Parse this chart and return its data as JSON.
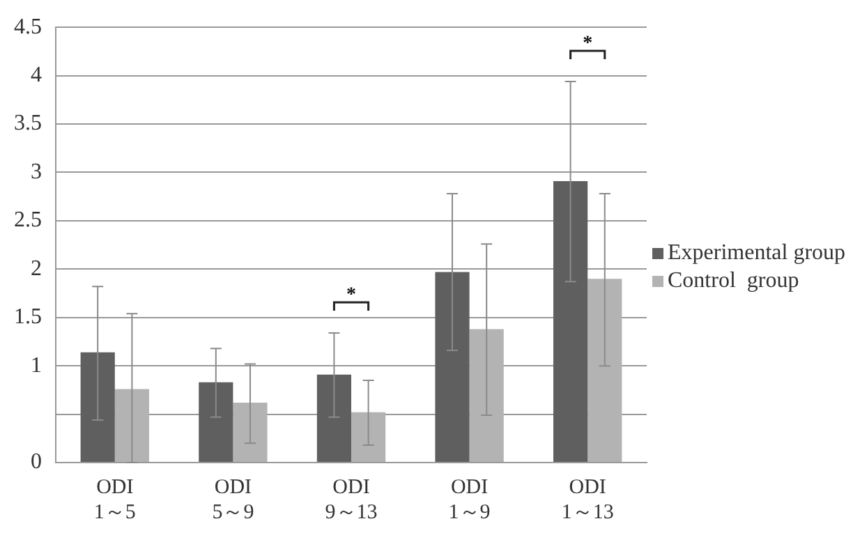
{
  "chart_data": {
    "type": "bar",
    "categories": [
      "ODI 1～5",
      "ODI 5～9",
      "ODI 9～13",
      "ODI 1～9",
      "ODI 1～13"
    ],
    "series": [
      {
        "name": "Experimental group",
        "color": "#5f5f5f",
        "values": [
          1.14,
          0.83,
          0.91,
          1.97,
          2.91
        ],
        "errors": [
          [
            0.44,
            1.82
          ],
          [
            0.47,
            1.18
          ],
          [
            0.47,
            1.34
          ],
          [
            1.16,
            2.78
          ],
          [
            1.87,
            3.94
          ]
        ]
      },
      {
        "name": "Control  group",
        "color": "#b3b3b3",
        "values": [
          0.76,
          0.62,
          0.52,
          1.38,
          1.9
        ],
        "errors": [
          [
            0,
            1.54
          ],
          [
            0.2,
            1.02
          ],
          [
            0.18,
            0.85
          ],
          [
            0.49,
            2.26
          ],
          [
            1.0,
            2.78
          ]
        ]
      }
    ],
    "ylim": [
      0,
      4.5
    ],
    "yticks": [
      0,
      {
        "value": 0.5,
        "label": null
      },
      1,
      1.5,
      2,
      2.5,
      3,
      3.5,
      4,
      4.5
    ],
    "grid": "y",
    "legend": "right",
    "annotations": [
      "*",
      "*"
    ]
  }
}
